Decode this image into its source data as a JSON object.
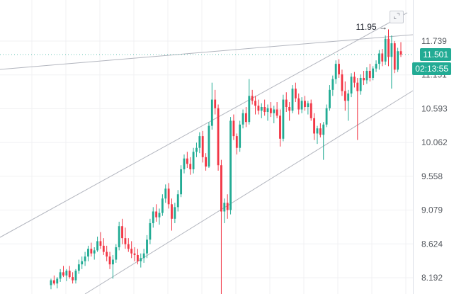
{
  "colors": {
    "up": "#22ab94",
    "down": "#f23645",
    "grid": "#f0f1f3",
    "trendline": "#b2b5be",
    "axis_text": "#55595f"
  },
  "price_axis_ticks": [
    "11.739",
    "11.151",
    "10.593",
    "10.062",
    "9.558",
    "9.079",
    "8.624",
    "8.192"
  ],
  "last_price_label": "11.501",
  "timer_label": "02:13:55",
  "high_annotation": "11.95 →",
  "fit_button_icon": "collapse-icon",
  "chart_data": {
    "type": "candlestick",
    "title": "",
    "xlabel": "",
    "ylabel": "",
    "y_scale": "log",
    "ylim": [
      7.95,
      12.55
    ],
    "grid": true,
    "last_price": 11.501,
    "session_high": 11.95,
    "candles": [
      [
        8.1,
        8.18,
        8.05,
        8.16
      ],
      [
        8.16,
        8.22,
        8.1,
        8.12
      ],
      [
        8.12,
        8.2,
        8.06,
        8.18
      ],
      [
        8.18,
        8.3,
        8.14,
        8.26
      ],
      [
        8.26,
        8.34,
        8.2,
        8.22
      ],
      [
        8.22,
        8.3,
        8.15,
        8.28
      ],
      [
        8.28,
        8.34,
        8.18,
        8.2
      ],
      [
        8.2,
        8.26,
        8.12,
        8.16
      ],
      [
        8.16,
        8.3,
        8.12,
        8.28
      ],
      [
        8.28,
        8.42,
        8.24,
        8.36
      ],
      [
        8.36,
        8.46,
        8.3,
        8.4
      ],
      [
        8.4,
        8.52,
        8.34,
        8.46
      ],
      [
        8.46,
        8.6,
        8.4,
        8.56
      ],
      [
        8.56,
        8.64,
        8.46,
        8.5
      ],
      [
        8.5,
        8.58,
        8.42,
        8.54
      ],
      [
        8.54,
        8.72,
        8.52,
        8.66
      ],
      [
        8.66,
        8.78,
        8.56,
        8.6
      ],
      [
        8.6,
        8.7,
        8.48,
        8.52
      ],
      [
        8.52,
        8.6,
        8.4,
        8.46
      ],
      [
        8.46,
        8.52,
        8.3,
        8.36
      ],
      [
        8.36,
        8.48,
        8.18,
        8.42
      ],
      [
        8.42,
        8.62,
        8.38,
        8.58
      ],
      [
        8.58,
        8.92,
        8.54,
        8.86
      ],
      [
        8.86,
        8.96,
        8.62,
        8.7
      ],
      [
        8.7,
        8.84,
        8.56,
        8.62
      ],
      [
        8.62,
        8.7,
        8.52,
        8.56
      ],
      [
        8.56,
        8.66,
        8.44,
        8.5
      ],
      [
        8.5,
        8.58,
        8.4,
        8.48
      ],
      [
        8.48,
        8.56,
        8.36,
        8.4
      ],
      [
        8.4,
        8.5,
        8.32,
        8.44
      ],
      [
        8.44,
        8.56,
        8.38,
        8.5
      ],
      [
        8.5,
        8.74,
        8.44,
        8.68
      ],
      [
        8.68,
        8.96,
        8.62,
        8.9
      ],
      [
        8.9,
        9.12,
        8.84,
        9.06
      ],
      [
        9.06,
        9.16,
        8.92,
        8.98
      ],
      [
        8.98,
        9.1,
        8.88,
        9.04
      ],
      [
        9.04,
        9.3,
        9.0,
        9.24
      ],
      [
        9.24,
        9.44,
        9.18,
        9.38
      ],
      [
        9.38,
        9.46,
        9.1,
        9.16
      ],
      [
        9.16,
        9.24,
        8.8,
        8.96
      ],
      [
        8.96,
        9.18,
        8.9,
        9.12
      ],
      [
        9.12,
        9.36,
        9.06,
        9.3
      ],
      [
        9.3,
        9.72,
        9.26,
        9.66
      ],
      [
        9.66,
        9.88,
        9.6,
        9.82
      ],
      [
        9.82,
        9.92,
        9.68,
        9.74
      ],
      [
        9.74,
        9.84,
        9.58,
        9.66
      ],
      [
        9.66,
        9.98,
        9.6,
        9.92
      ],
      [
        9.92,
        10.06,
        9.84,
        9.98
      ],
      [
        9.98,
        10.22,
        9.9,
        10.16
      ],
      [
        10.16,
        10.24,
        9.76,
        9.84
      ],
      [
        9.84,
        9.9,
        9.64,
        9.7
      ],
      [
        9.7,
        10.38,
        9.68,
        10.32
      ],
      [
        10.32,
        11.02,
        10.26,
        10.74
      ],
      [
        10.74,
        10.9,
        10.5,
        10.6
      ],
      [
        10.6,
        10.66,
        9.64,
        9.72
      ],
      [
        9.72,
        9.8,
        7.95,
        9.06
      ],
      [
        9.06,
        9.24,
        8.9,
        9.18
      ],
      [
        9.18,
        9.3,
        8.96,
        9.08
      ],
      [
        9.08,
        10.46,
        9.02,
        10.4
      ],
      [
        10.4,
        10.5,
        10.1,
        10.16
      ],
      [
        10.16,
        10.2,
        9.88,
        9.98
      ],
      [
        9.98,
        10.4,
        9.92,
        10.34
      ],
      [
        10.34,
        10.58,
        10.28,
        10.52
      ],
      [
        10.52,
        10.62,
        10.3,
        10.38
      ],
      [
        10.38,
        11.08,
        10.34,
        10.8
      ],
      [
        10.8,
        10.9,
        10.66,
        10.72
      ],
      [
        10.72,
        10.8,
        10.5,
        10.64
      ],
      [
        10.64,
        10.74,
        10.5,
        10.56
      ],
      [
        10.56,
        10.68,
        10.44,
        10.62
      ],
      [
        10.62,
        10.74,
        10.48,
        10.54
      ],
      [
        10.54,
        10.66,
        10.4,
        10.6
      ],
      [
        10.6,
        10.7,
        10.46,
        10.52
      ],
      [
        10.52,
        10.64,
        10.36,
        10.58
      ],
      [
        10.58,
        10.7,
        10.44,
        10.48
      ],
      [
        10.48,
        10.58,
        10.0,
        10.12
      ],
      [
        10.12,
        10.82,
        10.08,
        10.74
      ],
      [
        10.74,
        10.86,
        10.54,
        10.62
      ],
      [
        10.62,
        10.7,
        10.4,
        10.56
      ],
      [
        10.56,
        10.98,
        10.52,
        10.92
      ],
      [
        10.92,
        11.02,
        10.7,
        10.76
      ],
      [
        10.76,
        10.84,
        10.5,
        10.58
      ],
      [
        10.58,
        10.78,
        10.52,
        10.72
      ],
      [
        10.72,
        10.8,
        10.56,
        10.62
      ],
      [
        10.62,
        10.72,
        10.5,
        10.68
      ],
      [
        10.68,
        10.74,
        10.4,
        10.44
      ],
      [
        10.44,
        10.52,
        10.1,
        10.2
      ],
      [
        10.2,
        10.32,
        10.04,
        10.28
      ],
      [
        10.28,
        10.36,
        10.14,
        10.18
      ],
      [
        10.18,
        10.38,
        9.8,
        10.34
      ],
      [
        10.34,
        10.66,
        10.3,
        10.6
      ],
      [
        10.6,
        10.98,
        10.56,
        10.9
      ],
      [
        10.9,
        11.14,
        10.8,
        11.08
      ],
      [
        11.08,
        11.4,
        11.0,
        11.34
      ],
      [
        11.34,
        11.42,
        11.1,
        11.16
      ],
      [
        11.16,
        11.24,
        10.8,
        10.88
      ],
      [
        10.88,
        11.04,
        10.56,
        10.72
      ],
      [
        10.72,
        10.9,
        10.4,
        10.84
      ],
      [
        10.84,
        11.18,
        10.78,
        11.12
      ],
      [
        11.12,
        11.2,
        10.94,
        11.02
      ],
      [
        11.02,
        11.1,
        10.1,
        10.88
      ],
      [
        10.88,
        11.16,
        10.82,
        11.1
      ],
      [
        11.1,
        11.22,
        10.98,
        11.06
      ],
      [
        11.06,
        11.28,
        11.0,
        11.22
      ],
      [
        11.22,
        11.34,
        11.04,
        11.1
      ],
      [
        11.1,
        11.3,
        11.06,
        11.26
      ],
      [
        11.26,
        11.4,
        11.2,
        11.34
      ],
      [
        11.34,
        11.58,
        11.24,
        11.52
      ],
      [
        11.52,
        11.6,
        11.3,
        11.38
      ],
      [
        11.38,
        11.84,
        11.32,
        11.78
      ],
      [
        11.78,
        11.95,
        11.3,
        11.46
      ],
      [
        11.46,
        11.84,
        10.92,
        11.7
      ],
      [
        11.7,
        11.74,
        11.18,
        11.24
      ],
      [
        11.24,
        11.62,
        11.2,
        11.56
      ],
      [
        11.56,
        11.72,
        11.46,
        11.501
      ]
    ]
  }
}
